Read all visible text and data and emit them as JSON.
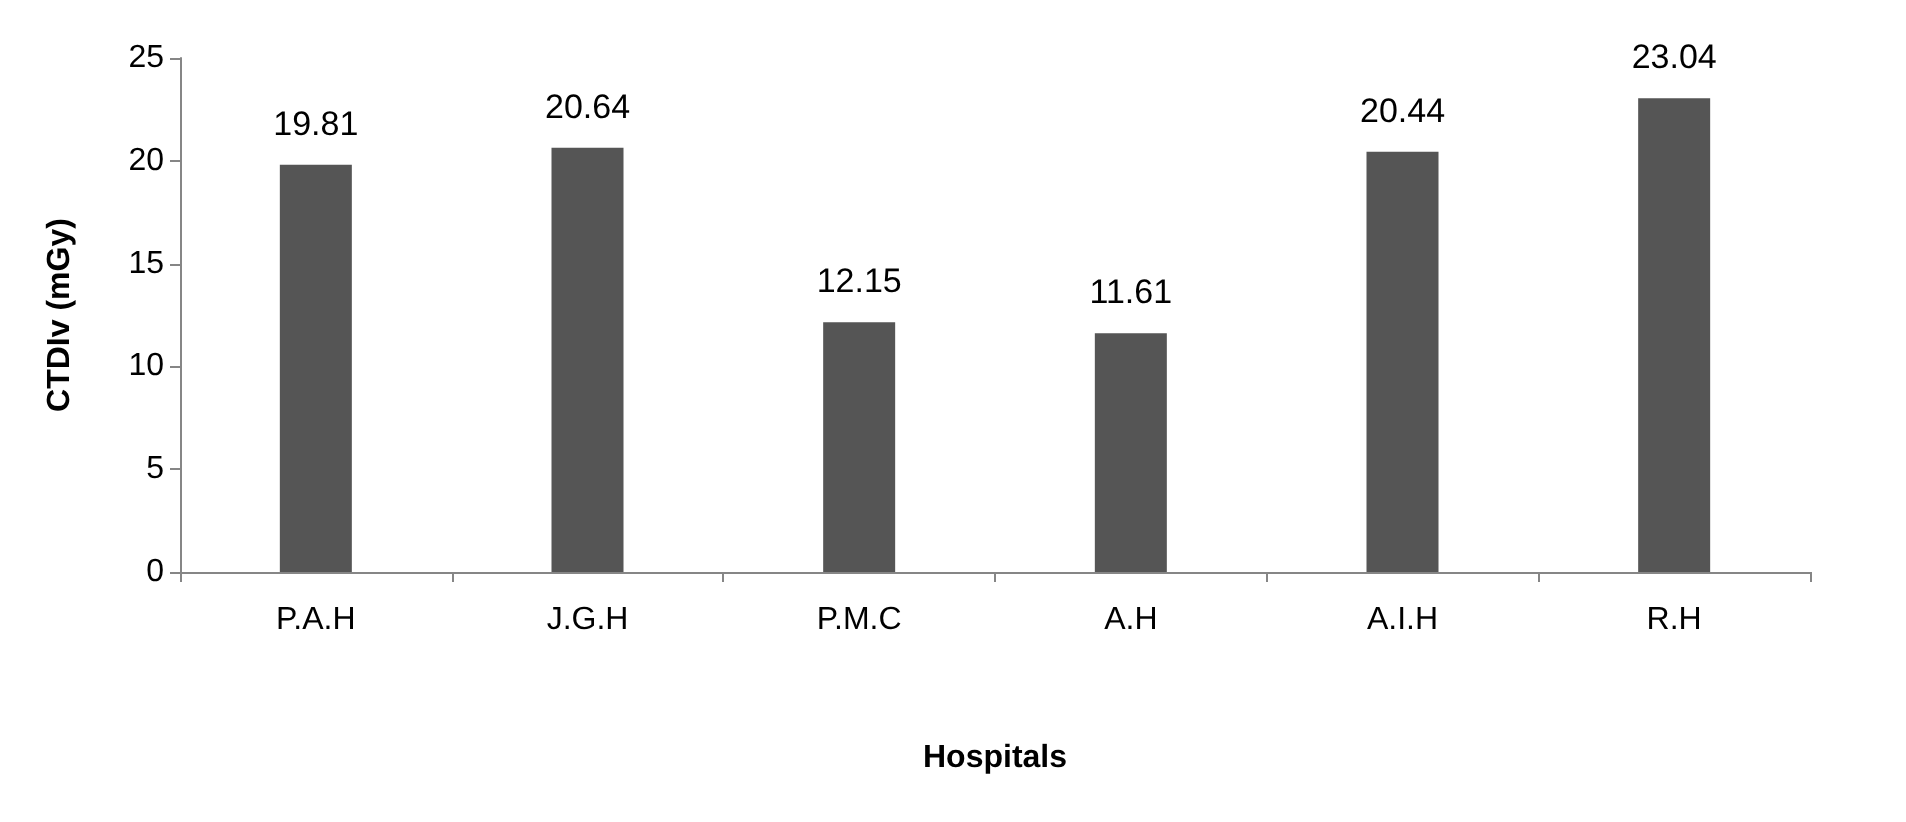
{
  "chart_data": {
    "type": "bar",
    "xlabel": "Hospitals",
    "ylabel": "CTDIv (mGy)",
    "categories": [
      "P.A.H",
      "J.G.H",
      "P.M.C",
      "A.H",
      "A.I.H",
      "R.H"
    ],
    "values": [
      19.81,
      20.64,
      12.15,
      11.61,
      20.44,
      23.04
    ],
    "color": "#555555",
    "ylim": [
      0,
      25
    ],
    "yticks": [
      0,
      5,
      10,
      15,
      20,
      25
    ],
    "grid": false,
    "data_labels": true
  }
}
